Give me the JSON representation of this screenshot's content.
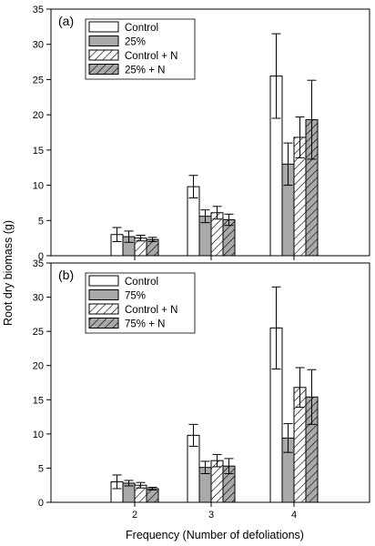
{
  "figure": {
    "ylabel": "Root dry biomass (g)",
    "xlabel": "Frequency (Number of defoliations)"
  },
  "chart_data": [
    {
      "type": "bar",
      "panel_label": "(a)",
      "categories": [
        "2",
        "3",
        "4"
      ],
      "ylim": [
        0,
        35
      ],
      "yticks": [
        0,
        5,
        10,
        15,
        20,
        25,
        30,
        35
      ],
      "legend_position": "top-left",
      "grid": false,
      "series": [
        {
          "name": "Control",
          "pattern": "open",
          "values": [
            3.0,
            9.8,
            25.5
          ],
          "errors": [
            1.0,
            1.6,
            6.0
          ]
        },
        {
          "name": "25%",
          "pattern": "gray",
          "values": [
            2.7,
            5.6,
            13.0
          ],
          "errors": [
            0.8,
            0.9,
            3.0
          ]
        },
        {
          "name": "Control + N",
          "pattern": "hatch-open",
          "values": [
            2.5,
            6.1,
            16.8
          ],
          "errors": [
            0.4,
            0.9,
            2.9
          ]
        },
        {
          "name": "25% + N",
          "pattern": "hatch-gray",
          "values": [
            2.3,
            5.1,
            19.3
          ],
          "errors": [
            0.3,
            0.8,
            5.6
          ]
        }
      ]
    },
    {
      "type": "bar",
      "panel_label": "(b)",
      "categories": [
        "2",
        "3",
        "4"
      ],
      "ylim": [
        0,
        35
      ],
      "yticks": [
        0,
        5,
        10,
        15,
        20,
        25,
        30,
        35
      ],
      "legend_position": "top-left",
      "grid": false,
      "series": [
        {
          "name": "Control",
          "pattern": "open",
          "values": [
            3.0,
            9.8,
            25.5
          ],
          "errors": [
            1.0,
            1.6,
            6.0
          ]
        },
        {
          "name": "75%",
          "pattern": "gray",
          "values": [
            2.8,
            5.1,
            9.4
          ],
          "errors": [
            0.4,
            0.9,
            2.1
          ]
        },
        {
          "name": "Control + N",
          "pattern": "hatch-open",
          "values": [
            2.5,
            6.1,
            16.8
          ],
          "errors": [
            0.4,
            0.9,
            2.9
          ]
        },
        {
          "name": "75% + N",
          "pattern": "hatch-gray",
          "values": [
            2.0,
            5.3,
            15.4
          ],
          "errors": [
            0.2,
            1.1,
            4.0
          ]
        }
      ]
    }
  ]
}
